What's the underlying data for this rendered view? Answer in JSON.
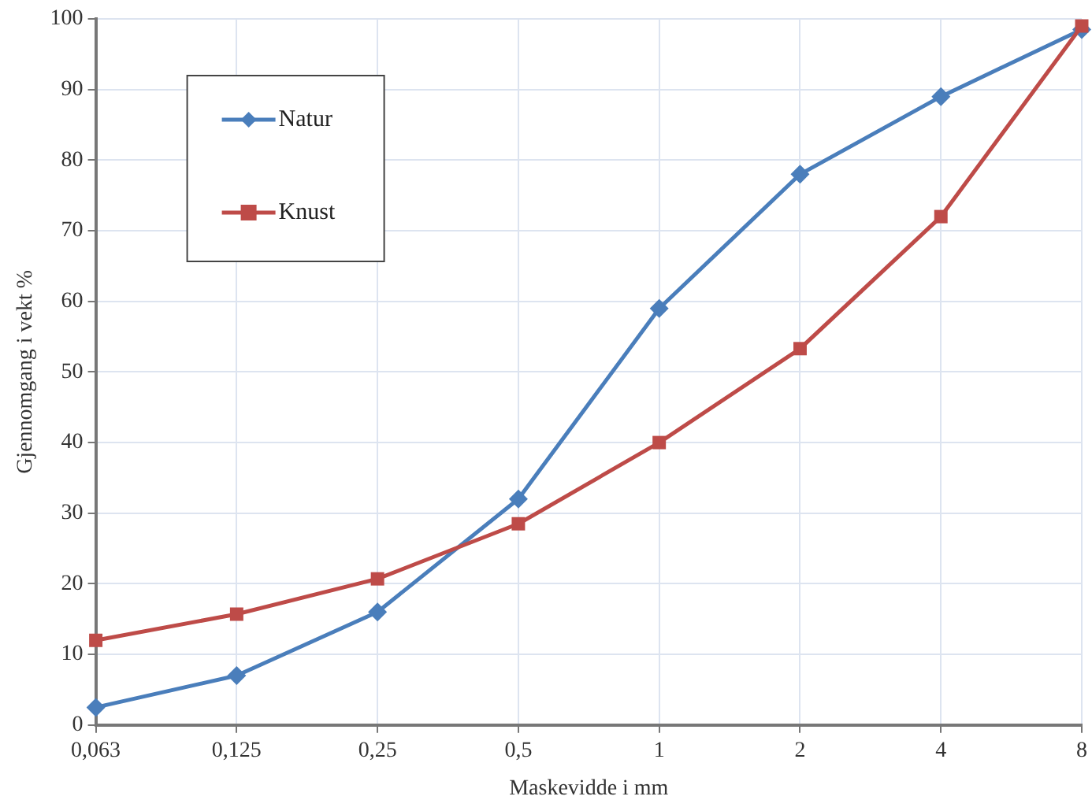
{
  "chart_data": {
    "type": "line",
    "xlabel": "Maskevidde i mm",
    "ylabel": "Gjennomgang i vekt %",
    "categories": [
      "0,063",
      "0,125",
      "0,25",
      "0,5",
      "1",
      "2",
      "4",
      "8"
    ],
    "series": [
      {
        "name": "Natur",
        "color": "#4a7ebb",
        "marker": "diamond",
        "values": [
          2.5,
          7,
          16,
          32,
          59,
          78,
          89,
          98.5
        ]
      },
      {
        "name": "Knust",
        "color": "#be4b48",
        "marker": "square",
        "values": [
          12,
          15.7,
          20.7,
          28.5,
          40,
          53.3,
          72,
          99
        ]
      }
    ],
    "ylim": [
      0,
      100
    ],
    "yticks": [
      0,
      10,
      20,
      30,
      40,
      50,
      60,
      70,
      80,
      90,
      100
    ],
    "grid": true,
    "legend": "top left",
    "line_style": "solid"
  }
}
